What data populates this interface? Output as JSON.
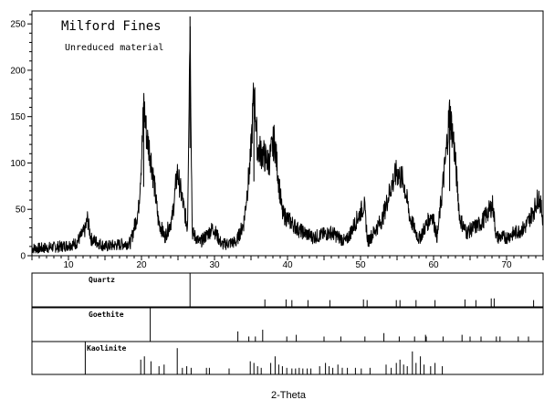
{
  "chart_data": {
    "type": "line",
    "title": "Milford Fines",
    "subtitle": "Unreduced material",
    "xlabel": "2-Theta",
    "ylabel": "",
    "xlim": [
      5,
      75
    ],
    "ylim": [
      0,
      260
    ],
    "xticks": [
      "10",
      "20",
      "30",
      "40",
      "50",
      "60",
      "70"
    ],
    "yticks": [
      "0",
      "50",
      "100",
      "150",
      "200",
      "250"
    ],
    "grid": false,
    "line_color": "#000000",
    "peaks": [
      {
        "x": 6.0,
        "y": 8
      },
      {
        "x": 9.0,
        "y": 10
      },
      {
        "x": 11.0,
        "y": 13
      },
      {
        "x": 12.3,
        "y": 28
      },
      {
        "x": 12.6,
        "y": 40
      },
      {
        "x": 13.1,
        "y": 18
      },
      {
        "x": 15.0,
        "y": 10
      },
      {
        "x": 17.0,
        "y": 12
      },
      {
        "x": 18.5,
        "y": 14
      },
      {
        "x": 19.6,
        "y": 50
      },
      {
        "x": 20.1,
        "y": 120
      },
      {
        "x": 20.3,
        "y": 165
      },
      {
        "x": 20.7,
        "y": 130
      },
      {
        "x": 21.2,
        "y": 110
      },
      {
        "x": 21.7,
        "y": 80
      },
      {
        "x": 22.3,
        "y": 38
      },
      {
        "x": 23.2,
        "y": 20
      },
      {
        "x": 24.2,
        "y": 40
      },
      {
        "x": 24.9,
        "y": 90
      },
      {
        "x": 25.6,
        "y": 60
      },
      {
        "x": 26.3,
        "y": 30
      },
      {
        "x": 26.65,
        "y": 258
      },
      {
        "x": 26.95,
        "y": 25
      },
      {
        "x": 28.0,
        "y": 14
      },
      {
        "x": 29.8,
        "y": 30
      },
      {
        "x": 31.0,
        "y": 12
      },
      {
        "x": 33.0,
        "y": 15
      },
      {
        "x": 34.0,
        "y": 35
      },
      {
        "x": 34.9,
        "y": 100
      },
      {
        "x": 35.4,
        "y": 178
      },
      {
        "x": 35.9,
        "y": 115
      },
      {
        "x": 36.6,
        "y": 110
      },
      {
        "x": 37.4,
        "y": 100
      },
      {
        "x": 38.2,
        "y": 125
      },
      {
        "x": 38.8,
        "y": 80
      },
      {
        "x": 39.3,
        "y": 45
      },
      {
        "x": 40.0,
        "y": 40
      },
      {
        "x": 41.5,
        "y": 28
      },
      {
        "x": 43.5,
        "y": 20
      },
      {
        "x": 46.0,
        "y": 25
      },
      {
        "x": 48.0,
        "y": 15
      },
      {
        "x": 50.5,
        "y": 55
      },
      {
        "x": 51.0,
        "y": 15
      },
      {
        "x": 53.0,
        "y": 40
      },
      {
        "x": 54.2,
        "y": 75
      },
      {
        "x": 55.0,
        "y": 90
      },
      {
        "x": 55.9,
        "y": 80
      },
      {
        "x": 56.8,
        "y": 40
      },
      {
        "x": 58.0,
        "y": 18
      },
      {
        "x": 59.8,
        "y": 45
      },
      {
        "x": 60.5,
        "y": 20
      },
      {
        "x": 61.6,
        "y": 100
      },
      {
        "x": 62.2,
        "y": 155
      },
      {
        "x": 62.8,
        "y": 120
      },
      {
        "x": 63.6,
        "y": 40
      },
      {
        "x": 64.5,
        "y": 25
      },
      {
        "x": 66.5,
        "y": 35
      },
      {
        "x": 68.1,
        "y": 55
      },
      {
        "x": 68.6,
        "y": 20
      },
      {
        "x": 70.0,
        "y": 20
      },
      {
        "x": 72.5,
        "y": 30
      },
      {
        "x": 73.8,
        "y": 50
      },
      {
        "x": 74.4,
        "y": 65
      },
      {
        "x": 75.0,
        "y": 40
      }
    ],
    "reference_phases": [
      {
        "name": "Quartz",
        "marker_line": 26.65,
        "sticks": [
          {
            "x": 36.9,
            "h": 0.22
          },
          {
            "x": 39.8,
            "h": 0.22
          },
          {
            "x": 40.6,
            "h": 0.2
          },
          {
            "x": 42.8,
            "h": 0.2
          },
          {
            "x": 45.8,
            "h": 0.2
          },
          {
            "x": 50.4,
            "h": 0.22
          },
          {
            "x": 50.9,
            "h": 0.2
          },
          {
            "x": 54.9,
            "h": 0.2
          },
          {
            "x": 55.4,
            "h": 0.2
          },
          {
            "x": 57.6,
            "h": 0.2
          },
          {
            "x": 60.2,
            "h": 0.2
          },
          {
            "x": 64.3,
            "h": 0.22
          },
          {
            "x": 65.8,
            "h": 0.2
          },
          {
            "x": 67.9,
            "h": 0.25
          },
          {
            "x": 68.3,
            "h": 0.25
          },
          {
            "x": 73.7,
            "h": 0.2
          }
        ]
      },
      {
        "name": "Goethite",
        "marker_line": 21.2,
        "sticks": [
          {
            "x": 33.2,
            "h": 0.3
          },
          {
            "x": 34.7,
            "h": 0.15
          },
          {
            "x": 35.6,
            "h": 0.15
          },
          {
            "x": 36.6,
            "h": 0.35
          },
          {
            "x": 39.9,
            "h": 0.15
          },
          {
            "x": 41.2,
            "h": 0.2
          },
          {
            "x": 45.0,
            "h": 0.15
          },
          {
            "x": 47.3,
            "h": 0.15
          },
          {
            "x": 50.6,
            "h": 0.15
          },
          {
            "x": 53.2,
            "h": 0.25
          },
          {
            "x": 55.3,
            "h": 0.15
          },
          {
            "x": 57.4,
            "h": 0.15
          },
          {
            "x": 58.9,
            "h": 0.2
          },
          {
            "x": 59.0,
            "h": 0.15
          },
          {
            "x": 61.3,
            "h": 0.15
          },
          {
            "x": 63.9,
            "h": 0.2
          },
          {
            "x": 65.0,
            "h": 0.15
          },
          {
            "x": 66.5,
            "h": 0.15
          },
          {
            "x": 68.6,
            "h": 0.15
          },
          {
            "x": 69.1,
            "h": 0.15
          },
          {
            "x": 71.6,
            "h": 0.15
          },
          {
            "x": 73.0,
            "h": 0.15
          }
        ]
      },
      {
        "name": "Kaolinite",
        "marker_line": 12.3,
        "sticks": [
          {
            "x": 19.9,
            "h": 0.45
          },
          {
            "x": 20.4,
            "h": 0.55
          },
          {
            "x": 21.3,
            "h": 0.4
          },
          {
            "x": 22.4,
            "h": 0.25
          },
          {
            "x": 23.1,
            "h": 0.3
          },
          {
            "x": 24.9,
            "h": 0.8
          },
          {
            "x": 25.6,
            "h": 0.2
          },
          {
            "x": 26.2,
            "h": 0.25
          },
          {
            "x": 26.8,
            "h": 0.2
          },
          {
            "x": 28.9,
            "h": 0.2
          },
          {
            "x": 29.3,
            "h": 0.2
          },
          {
            "x": 32.0,
            "h": 0.18
          },
          {
            "x": 34.9,
            "h": 0.4
          },
          {
            "x": 35.4,
            "h": 0.35
          },
          {
            "x": 35.9,
            "h": 0.25
          },
          {
            "x": 36.4,
            "h": 0.2
          },
          {
            "x": 37.7,
            "h": 0.35
          },
          {
            "x": 38.3,
            "h": 0.55
          },
          {
            "x": 38.8,
            "h": 0.3
          },
          {
            "x": 39.3,
            "h": 0.25
          },
          {
            "x": 39.9,
            "h": 0.2
          },
          {
            "x": 40.6,
            "h": 0.18
          },
          {
            "x": 41.1,
            "h": 0.18
          },
          {
            "x": 41.6,
            "h": 0.2
          },
          {
            "x": 42.1,
            "h": 0.18
          },
          {
            "x": 42.7,
            "h": 0.18
          },
          {
            "x": 43.2,
            "h": 0.18
          },
          {
            "x": 44.4,
            "h": 0.25
          },
          {
            "x": 45.2,
            "h": 0.35
          },
          {
            "x": 45.7,
            "h": 0.25
          },
          {
            "x": 46.2,
            "h": 0.2
          },
          {
            "x": 46.9,
            "h": 0.3
          },
          {
            "x": 47.5,
            "h": 0.2
          },
          {
            "x": 48.2,
            "h": 0.2
          },
          {
            "x": 49.3,
            "h": 0.2
          },
          {
            "x": 50.1,
            "h": 0.18
          },
          {
            "x": 51.3,
            "h": 0.2
          },
          {
            "x": 53.5,
            "h": 0.3
          },
          {
            "x": 54.2,
            "h": 0.2
          },
          {
            "x": 54.9,
            "h": 0.35
          },
          {
            "x": 55.4,
            "h": 0.45
          },
          {
            "x": 55.9,
            "h": 0.3
          },
          {
            "x": 56.4,
            "h": 0.25
          },
          {
            "x": 57.1,
            "h": 0.7
          },
          {
            "x": 57.6,
            "h": 0.35
          },
          {
            "x": 58.2,
            "h": 0.55
          },
          {
            "x": 58.7,
            "h": 0.3
          },
          {
            "x": 59.6,
            "h": 0.25
          },
          {
            "x": 60.2,
            "h": 0.35
          },
          {
            "x": 61.2,
            "h": 0.25
          }
        ]
      }
    ]
  }
}
